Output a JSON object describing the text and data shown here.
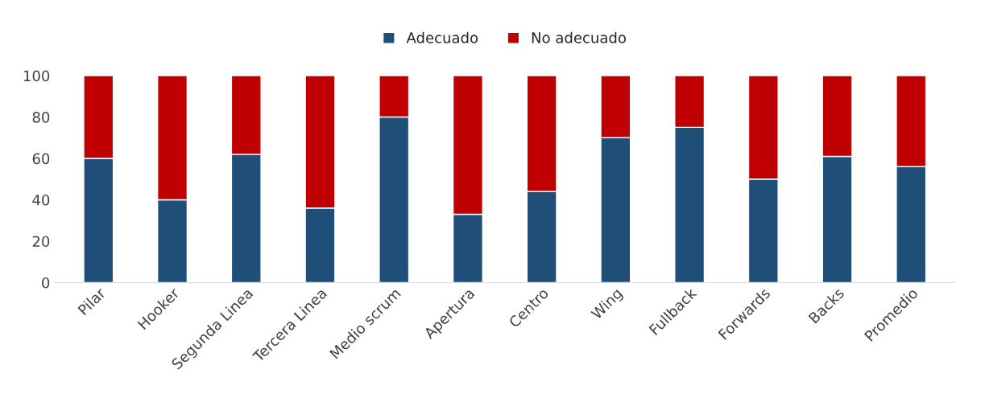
{
  "chart_data": {
    "type": "bar",
    "stacked": true,
    "categories": [
      "Pilar",
      "Hooker",
      "Segunda Linea",
      "Tercera Linea",
      "Medio scrum",
      "Apertura",
      "Centro",
      "Wing",
      "Fullback",
      "Forwards",
      "Backs",
      "Promedio"
    ],
    "series": [
      {
        "name": "Adecuado",
        "color": "#1f4e79",
        "values": [
          60,
          40,
          62,
          36,
          80,
          33,
          44,
          70,
          75,
          50,
          61,
          56
        ]
      },
      {
        "name": "No adecuado",
        "color": "#c00000",
        "values": [
          40,
          60,
          38,
          64,
          20,
          67,
          56,
          30,
          25,
          50,
          39,
          44
        ]
      }
    ],
    "ylim": [
      0,
      100
    ],
    "yticks": [
      0,
      20,
      40,
      60,
      80,
      100
    ],
    "grid": false,
    "legend": "top"
  }
}
